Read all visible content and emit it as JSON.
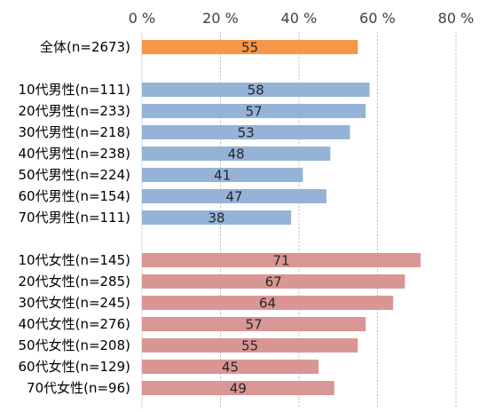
{
  "chart_data": {
    "type": "bar",
    "orientation": "horizontal",
    "xlim": [
      0,
      80
    ],
    "x_ticks": [
      "0 %",
      "20 %",
      "40 %",
      "60 %",
      "80 %"
    ],
    "x_tick_values": [
      0,
      20,
      40,
      60,
      80
    ],
    "grid": "vertical dashed",
    "colors": {
      "total": "#F79646",
      "male": "#95B3D7",
      "female": "#DA9694"
    },
    "categories": [
      "全体(n=2673)",
      "10代男性(n=111)",
      "20代男性(n=233)",
      "30代男性(n=218)",
      "40代男性(n=238)",
      "50代男性(n=224)",
      "60代男性(n=154)",
      "70代男性(n=111)",
      "10代女性(n=145)",
      "20代女性(n=285)",
      "30代女性(n=245)",
      "40代女性(n=276)",
      "50代女性(n=208)",
      "60代女性(n=129)",
      "70代女性(n=96)"
    ],
    "groups": [
      "total",
      "male",
      "male",
      "male",
      "male",
      "male",
      "male",
      "male",
      "female",
      "female",
      "female",
      "female",
      "female",
      "female",
      "female"
    ],
    "values": [
      55,
      58,
      57,
      53,
      48,
      41,
      47,
      38,
      71,
      67,
      64,
      57,
      55,
      45,
      49
    ]
  }
}
